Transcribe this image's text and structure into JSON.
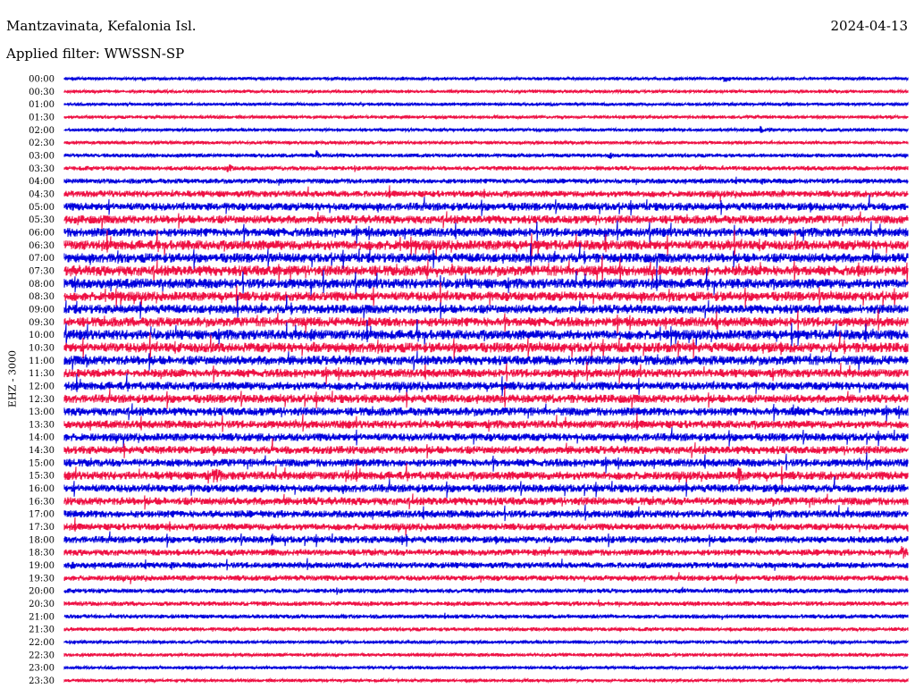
{
  "header": {
    "station": "Mantzavinata, Kefalonia Isl.",
    "filter": "Applied filter: WWSSN-SP",
    "date": "2024-04-13"
  },
  "channel_label": "EHZ - 3000",
  "colors": {
    "even_rows": "#0000dd",
    "odd_rows": "#ee1144"
  },
  "chart_data": {
    "type": "helicorder",
    "title": "Mantzavinata, Kefalonia Isl.",
    "subtitle": "Applied filter: WWSSN-SP",
    "date": "2024-04-13",
    "ylabel": "EHZ - 3000",
    "row_interval_minutes": 30,
    "y_tick_labels": [
      "00:00",
      "00:30",
      "01:00",
      "01:30",
      "02:00",
      "02:30",
      "03:00",
      "03:30",
      "04:00",
      "04:30",
      "05:00",
      "05:30",
      "06:00",
      "06:30",
      "07:00",
      "07:30",
      "08:00",
      "08:30",
      "09:00",
      "09:30",
      "10:00",
      "10:30",
      "11:00",
      "11:30",
      "12:00",
      "12:30",
      "13:00",
      "13:30",
      "14:00",
      "14:30",
      "15:00",
      "15:30",
      "16:00",
      "16:30",
      "17:00",
      "17:30",
      "18:00",
      "18:30",
      "19:00",
      "19:30",
      "20:00",
      "20:30",
      "21:00",
      "21:30",
      "22:00",
      "22:30",
      "23:00",
      "23:30"
    ],
    "row_activity": [
      0.05,
      0.05,
      0.05,
      0.06,
      0.06,
      0.07,
      0.12,
      0.18,
      0.25,
      0.4,
      0.55,
      0.6,
      0.65,
      0.75,
      0.7,
      0.8,
      0.75,
      0.7,
      0.65,
      0.7,
      0.75,
      0.75,
      0.7,
      0.6,
      0.6,
      0.6,
      0.6,
      0.55,
      0.55,
      0.55,
      0.55,
      0.6,
      0.55,
      0.55,
      0.5,
      0.45,
      0.45,
      0.4,
      0.35,
      0.3,
      0.2,
      0.2,
      0.15,
      0.12,
      0.08,
      0.08,
      0.05,
      0.05
    ],
    "events": [
      {
        "row": "00:00",
        "minute": 23.5,
        "amp": 0.9,
        "dur": 1.0
      },
      {
        "row": "00:30",
        "minute": 9.0,
        "amp": 0.5,
        "dur": 0.2
      },
      {
        "row": "00:30",
        "minute": 29.0,
        "amp": 0.3,
        "dur": 0.2
      },
      {
        "row": "01:30",
        "minute": 12.8,
        "amp": 0.5,
        "dur": 0.2
      },
      {
        "row": "02:00",
        "minute": 24.8,
        "amp": 1.0,
        "dur": 1.3
      },
      {
        "row": "03:00",
        "minute": 9.0,
        "amp": 1.3,
        "dur": 0.3
      },
      {
        "row": "03:00",
        "minute": 19.4,
        "amp": 1.4,
        "dur": 0.3
      },
      {
        "row": "03:30",
        "minute": 5.8,
        "amp": 1.4,
        "dur": 0.6
      },
      {
        "row": "03:30",
        "minute": 7.5,
        "amp": 0.6,
        "dur": 0.8
      },
      {
        "row": "05:00",
        "minute": 14.5,
        "amp": 1.3,
        "dur": 0.6
      },
      {
        "row": "04:30",
        "minute": 25.6,
        "amp": 1.2,
        "dur": 0.4
      },
      {
        "row": "06:00",
        "minute": 4.5,
        "amp": 1.2,
        "dur": 0.5
      },
      {
        "row": "06:00",
        "minute": 23.6,
        "amp": 1.3,
        "dur": 0.5
      },
      {
        "row": "06:30",
        "minute": 16.8,
        "amp": 1.4,
        "dur": 0.8
      },
      {
        "row": "07:30",
        "minute": 0.2,
        "amp": 2.2,
        "dur": 0.6
      },
      {
        "row": "07:30",
        "minute": 8.9,
        "amp": 1.4,
        "dur": 0.6
      },
      {
        "row": "08:00",
        "minute": 1.9,
        "amp": 1.5,
        "dur": 0.5
      },
      {
        "row": "08:30",
        "minute": 12.4,
        "amp": 1.5,
        "dur": 0.5
      },
      {
        "row": "09:00",
        "minute": 25.4,
        "amp": 1.5,
        "dur": 0.6
      },
      {
        "row": "09:30",
        "minute": 16.3,
        "amp": 1.4,
        "dur": 0.6
      },
      {
        "row": "09:30",
        "minute": 23.3,
        "amp": 1.3,
        "dur": 0.7
      },
      {
        "row": "10:00",
        "minute": 8.8,
        "amp": 2.0,
        "dur": 0.6
      },
      {
        "row": "10:00",
        "minute": 28.8,
        "amp": 1.6,
        "dur": 1.0
      },
      {
        "row": "10:30",
        "minute": 8.9,
        "amp": 1.8,
        "dur": 0.6
      },
      {
        "row": "11:00",
        "minute": 0.8,
        "amp": 1.8,
        "dur": 0.4
      },
      {
        "row": "11:00",
        "minute": 20.7,
        "amp": 1.3,
        "dur": 0.6
      },
      {
        "row": "12:00",
        "minute": 8.3,
        "amp": 1.2,
        "dur": 0.8
      },
      {
        "row": "13:00",
        "minute": 25.9,
        "amp": 2.8,
        "dur": 0.6
      },
      {
        "row": "15:30",
        "minute": 5.3,
        "amp": 2.0,
        "dur": 1.5
      },
      {
        "row": "15:30",
        "minute": 10.0,
        "amp": 1.8,
        "dur": 1.0
      },
      {
        "row": "15:30",
        "minute": 24.0,
        "amp": 2.4,
        "dur": 0.5
      },
      {
        "row": "16:30",
        "minute": 2.6,
        "amp": 1.2,
        "dur": 0.5
      },
      {
        "row": "16:30",
        "minute": 25.2,
        "amp": 1.4,
        "dur": 0.8
      },
      {
        "row": "18:00",
        "minute": 7.4,
        "amp": 1.6,
        "dur": 0.6
      },
      {
        "row": "18:30",
        "minute": 29.8,
        "amp": 2.0,
        "dur": 0.5
      },
      {
        "row": "19:00",
        "minute": 0.3,
        "amp": 1.2,
        "dur": 0.4
      },
      {
        "row": "20:00",
        "minute": 12.3,
        "amp": 0.6,
        "dur": 0.3
      },
      {
        "row": "20:30",
        "minute": 10.8,
        "amp": 0.9,
        "dur": 0.2
      },
      {
        "row": "20:30",
        "minute": 19.0,
        "amp": 1.1,
        "dur": 0.3
      },
      {
        "row": "21:30",
        "minute": 15.4,
        "amp": 0.5,
        "dur": 0.3
      },
      {
        "row": "22:30",
        "minute": 15.9,
        "amp": 0.5,
        "dur": 0.2
      },
      {
        "row": "22:30",
        "minute": 28.0,
        "amp": 0.5,
        "dur": 0.2
      }
    ]
  }
}
